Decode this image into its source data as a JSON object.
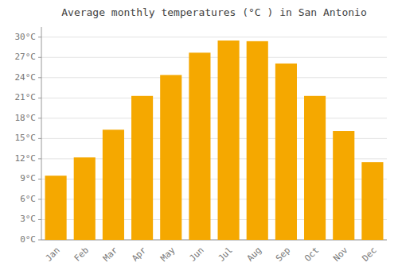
{
  "chart_data": {
    "type": "bar",
    "title": "Average monthly temperatures (°C ) in San Antonio",
    "categories": [
      "Jan",
      "Feb",
      "Mar",
      "Apr",
      "May",
      "Jun",
      "Jul",
      "Aug",
      "Sep",
      "Oct",
      "Nov",
      "Dec"
    ],
    "values": [
      9.5,
      12.2,
      16.3,
      21.3,
      24.4,
      27.7,
      29.5,
      29.4,
      26.1,
      21.3,
      16.1,
      11.5
    ],
    "color": "#F5A800",
    "ylim": [
      0,
      31.5
    ],
    "yticks": [
      {
        "value": 0,
        "label": "0°C"
      },
      {
        "value": 3,
        "label": "3°C"
      },
      {
        "value": 6,
        "label": "6°C"
      },
      {
        "value": 9,
        "label": "9°C"
      },
      {
        "value": 12,
        "label": "12°C"
      },
      {
        "value": 15,
        "label": "15°C"
      },
      {
        "value": 18,
        "label": "18°C"
      },
      {
        "value": 21,
        "label": "21°C"
      },
      {
        "value": 24,
        "label": "24°C"
      },
      {
        "value": 27,
        "label": "27°C"
      },
      {
        "value": 30,
        "label": "30°C"
      }
    ],
    "grid": true
  }
}
